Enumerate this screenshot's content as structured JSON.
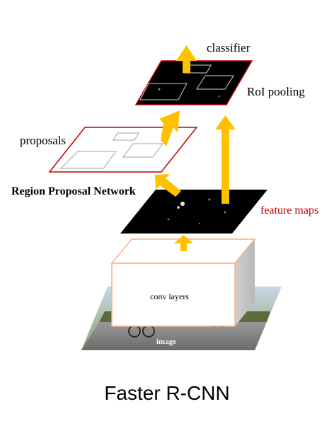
{
  "labels": {
    "classifier": "classifier",
    "roi_pooling": "RoI pooling",
    "proposals": "proposals",
    "rpn": "Region Proposal Network",
    "feature_maps": "feature maps",
    "conv_layers": "conv layers",
    "image": "image"
  },
  "caption": "Faster R-CNN",
  "colors": {
    "arrow": "#ffc000",
    "frame_red": "#c00000",
    "box_orange": "#f4b183",
    "map_fill": "#000000"
  }
}
